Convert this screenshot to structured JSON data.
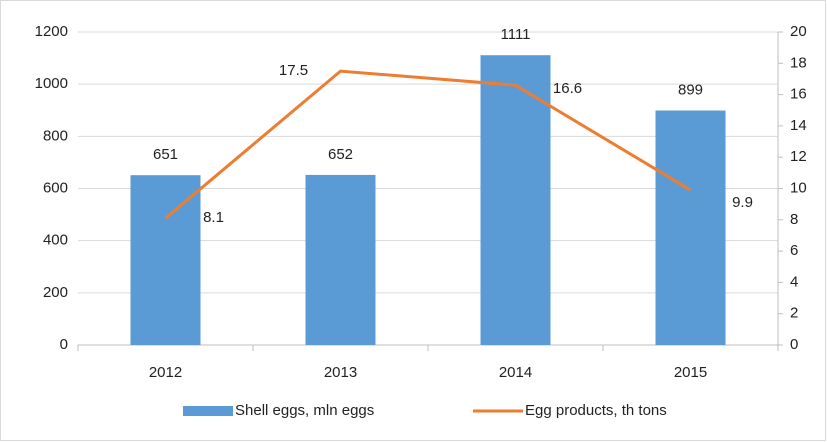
{
  "chart_data": {
    "type": "bar-line",
    "categories": [
      "2012",
      "2013",
      "2014",
      "2015"
    ],
    "series": [
      {
        "name": "Shell eggs, mln eggs",
        "color": "#5b9bd5",
        "type": "bar",
        "values": [
          651,
          652,
          1111,
          899
        ]
      },
      {
        "name": "Egg products, th tons",
        "color": "#ed7d31",
        "type": "line",
        "axis": "y2",
        "values": [
          8.1,
          17.5,
          16.6,
          9.9
        ]
      }
    ],
    "ylim": [
      0,
      1200
    ],
    "yticks": [
      0,
      200,
      400,
      600,
      800,
      1000,
      1200
    ],
    "y2lim": [
      0,
      20
    ],
    "y2ticks": [
      0,
      2,
      4,
      6,
      8,
      10,
      12,
      14,
      16,
      18,
      20
    ],
    "grid": true,
    "legend": "bottom"
  }
}
